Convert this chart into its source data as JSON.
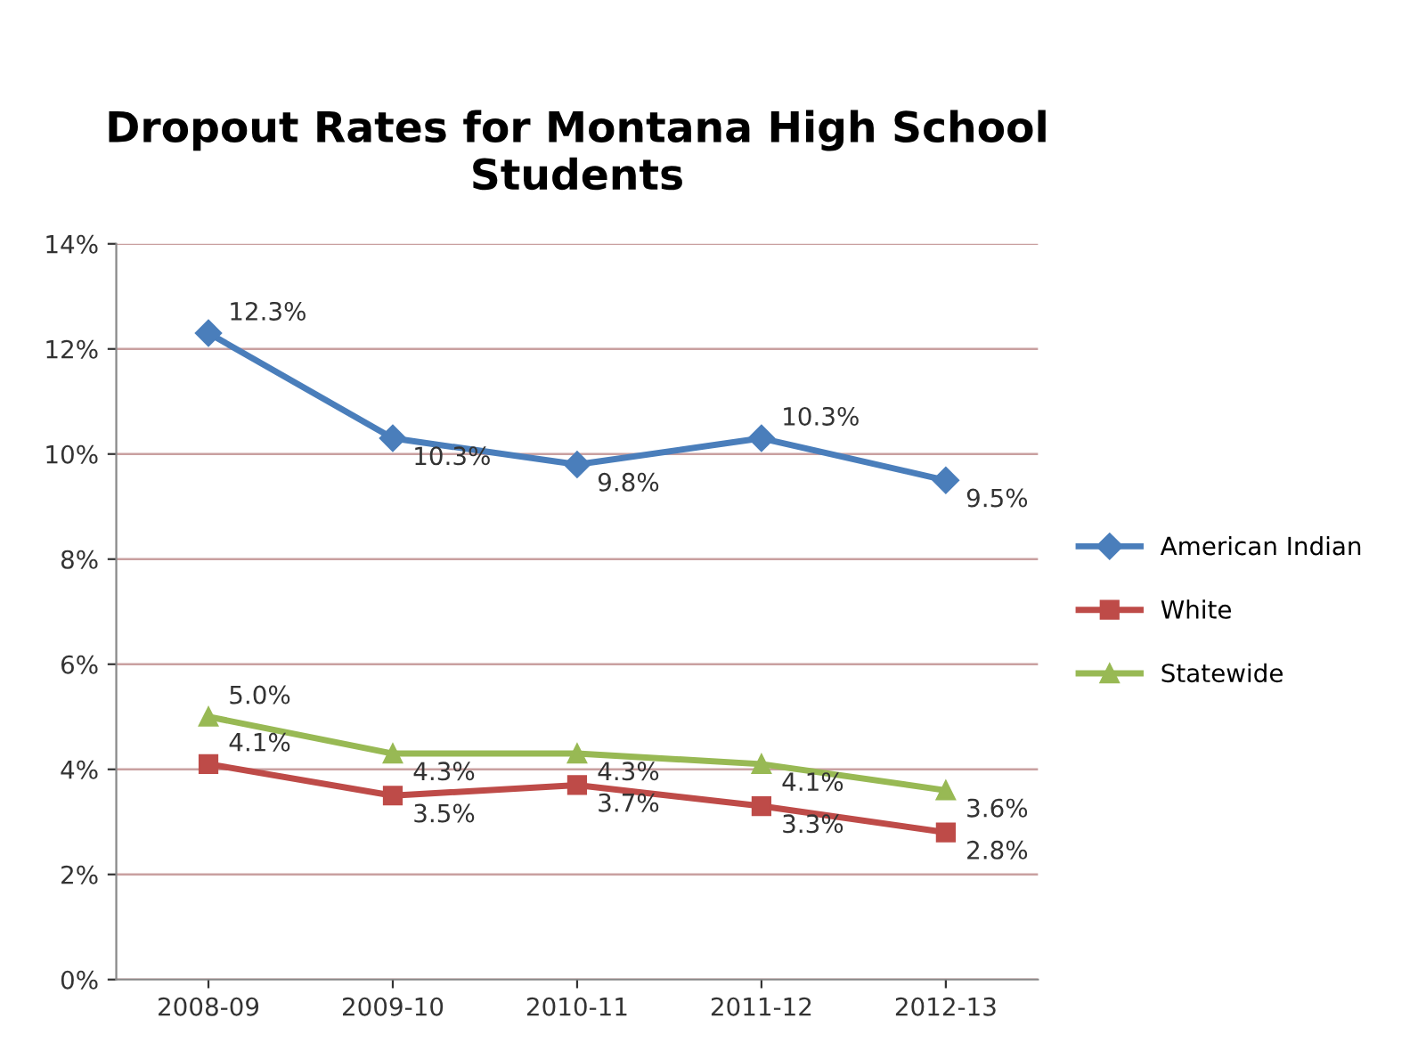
{
  "chart_data": {
    "type": "line",
    "title": "Dropout Rates for Montana High School\nStudents",
    "categories": [
      "2008-09",
      "2009-10",
      "2010-11",
      "2011-12",
      "2012-13"
    ],
    "series": [
      {
        "name": "American Indian",
        "color": "#4a7ebb",
        "marker": "diamond",
        "values": [
          12.3,
          10.3,
          9.8,
          10.3,
          9.5
        ],
        "value_labels": [
          "12.3%",
          "10.3%",
          "9.8%",
          "10.3%",
          "9.5%"
        ]
      },
      {
        "name": "White",
        "color": "#be4b48",
        "marker": "square",
        "values": [
          4.1,
          3.5,
          3.7,
          3.3,
          2.8
        ],
        "value_labels": [
          "4.1%",
          "3.5%",
          "3.7%",
          "3.3%",
          "2.8%"
        ]
      },
      {
        "name": "Statewide",
        "color": "#98b954",
        "marker": "triangle",
        "values": [
          5.0,
          4.3,
          4.3,
          4.1,
          3.6
        ],
        "value_labels": [
          "5.0%",
          "4.3%",
          "4.3%",
          "4.1%",
          "3.6%"
        ]
      }
    ],
    "ylim": [
      0,
      14
    ],
    "yticks": [
      {
        "value": 0,
        "label": "0%"
      },
      {
        "value": 2,
        "label": "2%"
      },
      {
        "value": 4,
        "label": "4%"
      },
      {
        "value": 6,
        "label": "6%"
      },
      {
        "value": 8,
        "label": "8%"
      },
      {
        "value": 10,
        "label": "10%"
      },
      {
        "value": 12,
        "label": "12%"
      },
      {
        "value": 14,
        "label": "14%"
      }
    ],
    "grid": "y",
    "legend": "right",
    "line_style": "solid"
  }
}
